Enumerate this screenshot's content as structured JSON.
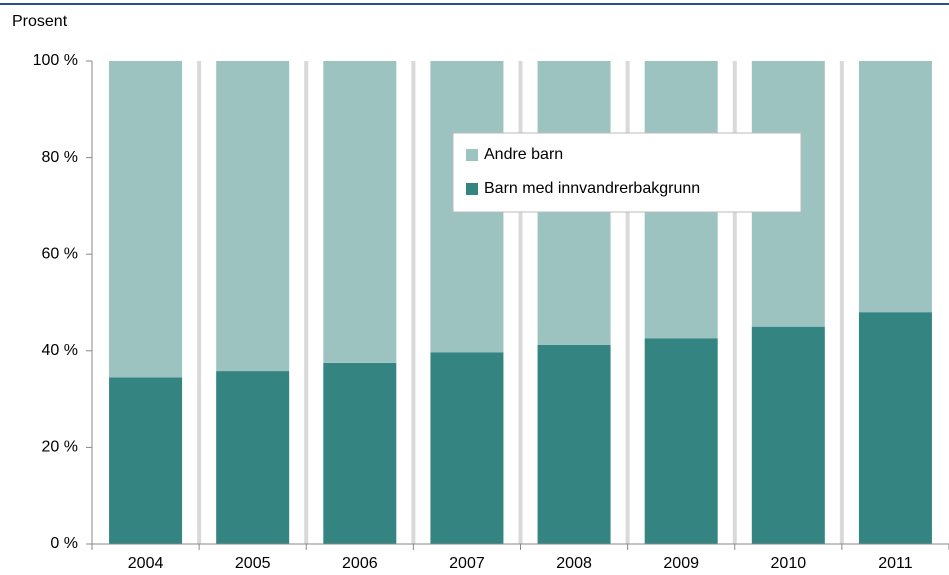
{
  "chart_data": {
    "type": "stacked_bar",
    "y_label": "Prosent",
    "categories": [
      "2004",
      "2005",
      "2006",
      "2007",
      "2008",
      "2009",
      "2010",
      "2011"
    ],
    "series": [
      {
        "name": "Andre barn",
        "color": "#9dc3c1",
        "values": [
          65.5,
          64.2,
          62.5,
          60.3,
          58.8,
          57.4,
          55,
          52
        ]
      },
      {
        "name": "Barn med innvandrerbakgrunn",
        "color": "#348482",
        "values": [
          34.5,
          35.8,
          37.5,
          39.7,
          41.2,
          42.6,
          45,
          48
        ]
      }
    ],
    "ylim": [
      0,
      100
    ],
    "yticks": [
      {
        "value": 0,
        "label": "0 %"
      },
      {
        "value": 20,
        "label": "20 %"
      },
      {
        "value": 40,
        "label": "40 %"
      },
      {
        "value": 60,
        "label": "60 %"
      },
      {
        "value": 80,
        "label": "80 %"
      },
      {
        "value": 100,
        "label": "100 %"
      }
    ]
  }
}
